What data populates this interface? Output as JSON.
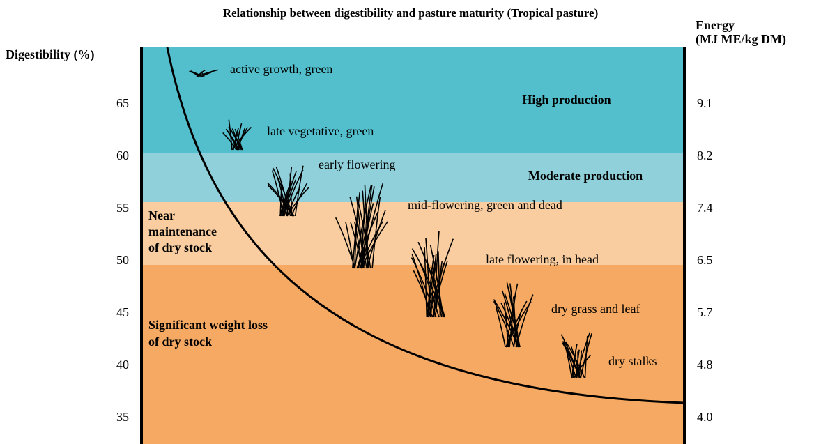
{
  "title": "Relationship between digestibility and pasture maturity (Tropical pasture)",
  "left_axis": {
    "label": "Digestibility (%)",
    "ticks": [
      "65",
      "60",
      "55",
      "50",
      "45",
      "40",
      "35"
    ]
  },
  "right_axis": {
    "label_lines": [
      "Energy",
      "(MJ ME/kg DM)"
    ],
    "ticks": [
      "9.1",
      "8.2",
      "7.4",
      "6.5",
      "5.7",
      "4.8",
      "4.0"
    ]
  },
  "zones": [
    {
      "lines": [
        "High production"
      ]
    },
    {
      "lines": [
        "Moderate production"
      ]
    },
    {
      "lines": [
        "Near",
        "maintenance",
        "of dry stock"
      ]
    },
    {
      "lines": [
        "Significant weight loss",
        "of dry stock"
      ]
    }
  ],
  "stages": [
    "active growth, green",
    "late vegetative, green",
    "early flowering",
    "mid-flowering, green and dead",
    "late flowering, in head",
    "dry grass and leaf",
    "dry stalks"
  ]
}
